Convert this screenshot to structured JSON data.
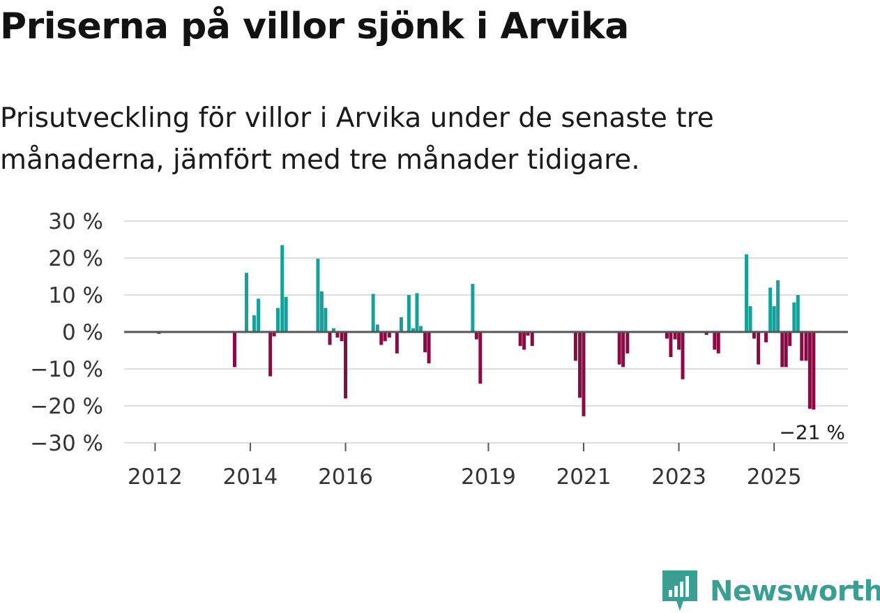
{
  "title": "Priserna på villor sjönk i Arvika",
  "subtitle": "Prisutveckling för villor i Arvika under de senaste tre månaderna, jämfört med tre månader tidigare.",
  "brand": {
    "name": "Newsworthy",
    "logo_icon": "bar-chart-speech-bubble-icon"
  },
  "colors": {
    "positive": "#16a099",
    "negative": "#8c0a44",
    "grid": "#dddddd",
    "zero_line": "#555555",
    "axis_text": "#333333",
    "brand": "#3a9e93"
  },
  "chart_data": {
    "type": "bar",
    "title": "Priserna på villor sjönk i Arvika",
    "ylabel": "",
    "xlabel": "",
    "ylim": [
      -30,
      30
    ],
    "xlim": [
      2011.35,
      2026.55
    ],
    "y_ticks": [
      30,
      20,
      10,
      0,
      -10,
      -20,
      -30
    ],
    "y_tick_labels": [
      "30 %",
      "20 %",
      "10 %",
      "0 %",
      "−10 %",
      "−20 %",
      "−30 %"
    ],
    "x_ticks": [
      2012,
      2014,
      2016,
      2019,
      2021,
      2023,
      2025
    ],
    "x_tick_labels": [
      "2012",
      "2014",
      "2016",
      "2019",
      "2021",
      "2023",
      "2025"
    ],
    "annotation": {
      "text": "−21 %",
      "x": 2025.83,
      "y": -21
    },
    "series": [
      {
        "name": "Prisutveckling",
        "x": [
          2012.08,
          2013.67,
          2013.92,
          2014.08,
          2014.17,
          2014.42,
          2014.5,
          2014.58,
          2014.67,
          2014.75,
          2015.42,
          2015.5,
          2015.58,
          2015.67,
          2015.75,
          2015.83,
          2015.92,
          2016.0,
          2016.58,
          2016.67,
          2016.75,
          2016.83,
          2016.92,
          2017.08,
          2017.17,
          2017.33,
          2017.42,
          2017.5,
          2017.58,
          2017.67,
          2017.75,
          2018.67,
          2018.75,
          2018.83,
          2019.67,
          2019.75,
          2019.83,
          2019.92,
          2020.83,
          2020.92,
          2021.0,
          2021.75,
          2021.83,
          2021.92,
          2022.75,
          2022.83,
          2022.92,
          2023.0,
          2023.08,
          2023.58,
          2023.75,
          2023.83,
          2024.42,
          2024.5,
          2024.58,
          2024.67,
          2024.83,
          2024.92,
          2025.0,
          2025.08,
          2025.17,
          2025.25,
          2025.33,
          2025.42,
          2025.5,
          2025.58,
          2025.67,
          2025.75,
          2025.83
        ],
        "values": [
          -0.5,
          -9.5,
          16,
          4.5,
          9,
          -12,
          -1.2,
          6.5,
          23.5,
          9.5,
          19.8,
          11,
          6.5,
          -3.5,
          1,
          -1.5,
          -2.5,
          -18,
          10.3,
          2,
          -3.5,
          -2.5,
          -1.5,
          -5.8,
          4,
          10,
          1,
          10.5,
          1.6,
          -5.5,
          -8.5,
          13,
          -2,
          -14,
          -3.8,
          -4.8,
          -1,
          -3.8,
          -7.8,
          -17.8,
          -22.8,
          -8.8,
          -9.5,
          -5.8,
          -1.8,
          -6.8,
          -2,
          -4.8,
          -12.8,
          -0.8,
          -4.8,
          -5.8,
          21,
          7,
          -1.8,
          -8.8,
          -2.8,
          12,
          7,
          14,
          -9.5,
          -9.5,
          -3.8,
          8,
          10,
          -7.8,
          -7.8,
          -20.8,
          -21
        ]
      }
    ]
  }
}
